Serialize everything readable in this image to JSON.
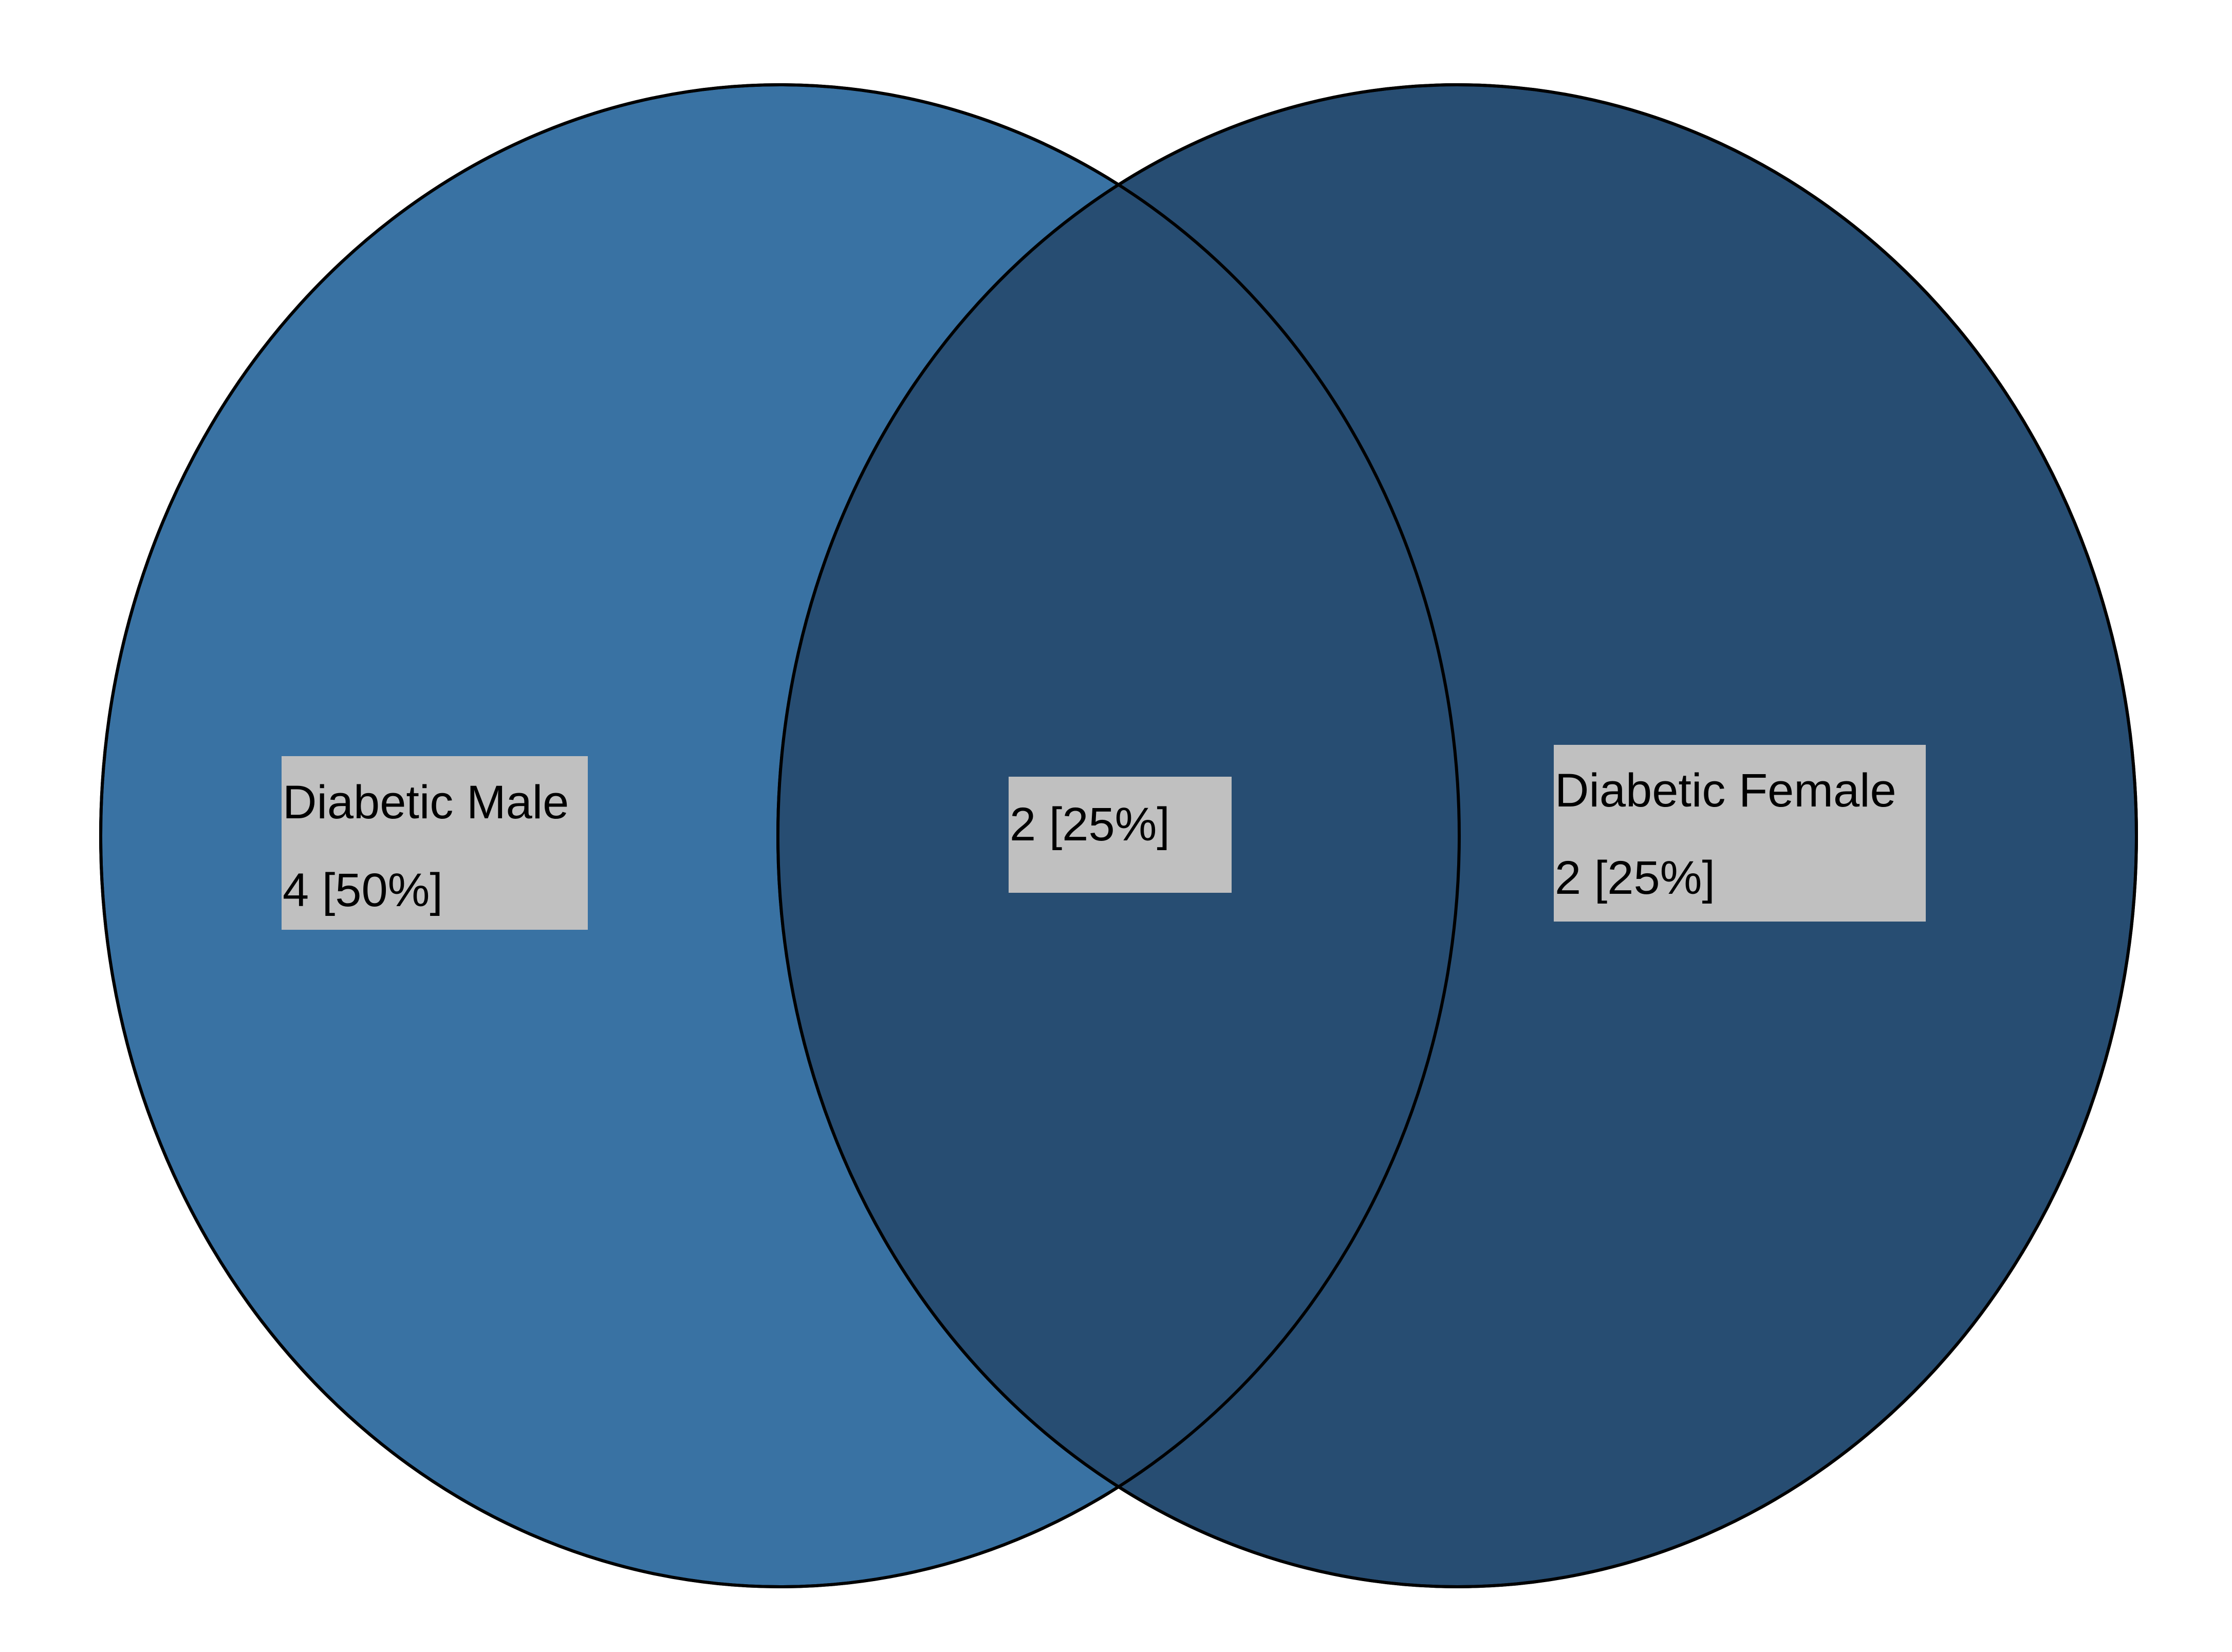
{
  "diagram": {
    "type": "venn",
    "sets": [
      {
        "name": "Diabetic Male",
        "only_count_text": "4 [50%]",
        "fill_color": "#3972a3"
      },
      {
        "name": "Diabetic Female",
        "only_count_text": "2 [25%]",
        "fill_color": "#274d72"
      }
    ],
    "intersection": {
      "count_text": "2 [25%]",
      "fill_color": "#274d72"
    },
    "outline_color": "#000000",
    "label_background_color": "#c0c0c0"
  }
}
